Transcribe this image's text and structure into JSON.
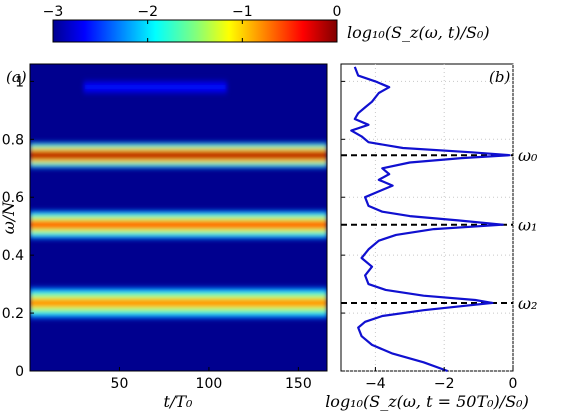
{
  "chart_data": [
    {
      "panel": "(a)",
      "type": "heatmap",
      "xlabel": "t/T₀",
      "ylabel": "ω/N",
      "xlim": [
        0,
        166
      ],
      "ylim": [
        0,
        1.06
      ],
      "xticks": [
        50,
        100,
        150
      ],
      "yticks": [
        0,
        0.2,
        0.4,
        0.6,
        0.8,
        1
      ],
      "colorbar": {
        "label": "log₁₀(S_z(ω, t)/S₀)",
        "range": [
          -3,
          0
        ],
        "ticks": [
          -3,
          -2,
          -1,
          0
        ],
        "colormap": "jet"
      },
      "bands": [
        {
          "freq": 0.745,
          "width": 0.018,
          "level": 0.0,
          "t_range": [
            0,
            166
          ]
        },
        {
          "freq": 0.505,
          "width": 0.02,
          "level": -0.5,
          "t_range": [
            0,
            166
          ]
        },
        {
          "freq": 0.235,
          "width": 0.022,
          "level": -0.7,
          "t_range": [
            0,
            166
          ]
        },
        {
          "freq": 0.98,
          "width": 0.01,
          "level": -2.6,
          "t_range": [
            30,
            110
          ]
        }
      ]
    },
    {
      "panel": "(b)",
      "type": "line",
      "xlabel": "log₁₀(S_z(ω, t = 50T₀)/S₀)",
      "xlim": [
        -5,
        0
      ],
      "xticks": [
        -4,
        -2,
        0
      ],
      "ylim": [
        0,
        1.06
      ],
      "grid": true,
      "series": [
        {
          "color": "#1010d0",
          "points": [
            [
              0.0,
              -1.9
            ],
            [
              0.03,
              -2.6
            ],
            [
              0.06,
              -3.5
            ],
            [
              0.09,
              -4.1
            ],
            [
              0.12,
              -4.4
            ],
            [
              0.15,
              -4.5
            ],
            [
              0.17,
              -4.3
            ],
            [
              0.19,
              -3.8
            ],
            [
              0.21,
              -2.6
            ],
            [
              0.225,
              -1.4
            ],
            [
              0.235,
              -0.6
            ],
            [
              0.245,
              -1.1
            ],
            [
              0.26,
              -2.6
            ],
            [
              0.28,
              -3.7
            ],
            [
              0.3,
              -4.2
            ],
            [
              0.33,
              -4.3
            ],
            [
              0.36,
              -4.1
            ],
            [
              0.39,
              -4.4
            ],
            [
              0.42,
              -4.2
            ],
            [
              0.45,
              -3.9
            ],
            [
              0.47,
              -3.4
            ],
            [
              0.49,
              -2.3
            ],
            [
              0.505,
              -0.3
            ],
            [
              0.52,
              -1.6
            ],
            [
              0.535,
              -3.0
            ],
            [
              0.55,
              -3.8
            ],
            [
              0.57,
              -4.2
            ],
            [
              0.6,
              -4.3
            ],
            [
              0.62,
              -3.9
            ],
            [
              0.64,
              -3.5
            ],
            [
              0.66,
              -3.9
            ],
            [
              0.68,
              -3.6
            ],
            [
              0.7,
              -3.8
            ],
            [
              0.72,
              -3.0
            ],
            [
              0.735,
              -1.5
            ],
            [
              0.745,
              -0.1
            ],
            [
              0.755,
              -1.2
            ],
            [
              0.77,
              -3.2
            ],
            [
              0.79,
              -4.2
            ],
            [
              0.81,
              -4.4
            ],
            [
              0.83,
              -4.7
            ],
            [
              0.85,
              -4.2
            ],
            [
              0.87,
              -4.6
            ],
            [
              0.89,
              -4.5
            ],
            [
              0.91,
              -4.3
            ],
            [
              0.93,
              -4.1
            ],
            [
              0.96,
              -3.9
            ],
            [
              0.98,
              -3.6
            ],
            [
              1.0,
              -4.0
            ],
            [
              1.02,
              -4.5
            ],
            [
              1.05,
              -4.6
            ]
          ]
        }
      ],
      "peak_labels": [
        {
          "freq": 0.745,
          "label": "ω₀"
        },
        {
          "freq": 0.505,
          "label": "ω₁"
        },
        {
          "freq": 0.235,
          "label": "ω₂"
        }
      ]
    }
  ]
}
